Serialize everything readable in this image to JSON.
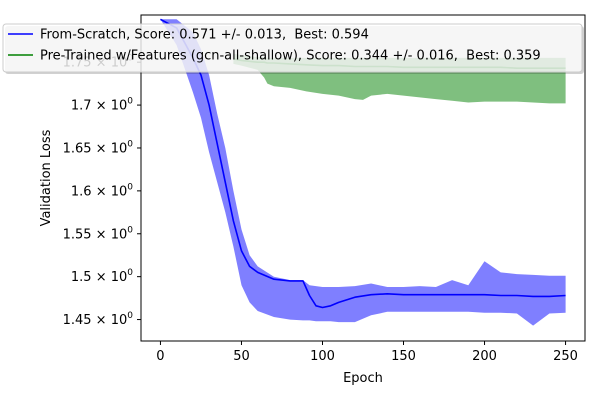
{
  "chart_data": {
    "type": "line",
    "title": "",
    "xlabel": "Epoch",
    "ylabel": "Validation Loss",
    "xlim": [
      -12,
      262
    ],
    "ylim": [
      1.425,
      1.805
    ],
    "x_ticks": [
      0,
      50,
      100,
      150,
      200,
      250
    ],
    "x_tick_labels": [
      "0",
      "50",
      "100",
      "150",
      "200",
      "250"
    ],
    "y_ticks": [
      1.45,
      1.5,
      1.55,
      1.6,
      1.65,
      1.7,
      1.75
    ],
    "y_tick_labels": [
      {
        "base": "1.45",
        "times": "× 10",
        "exp": "0"
      },
      {
        "base": "1.5",
        "times": "× 10",
        "exp": "0"
      },
      {
        "base": "1.55",
        "times": "× 10",
        "exp": "0"
      },
      {
        "base": "1.6",
        "times": "× 10",
        "exp": "0"
      },
      {
        "base": "1.65",
        "times": "× 10",
        "exp": "0"
      },
      {
        "base": "1.7",
        "times": "× 10",
        "exp": "0"
      },
      {
        "base": "1.75",
        "times": "× 10",
        "exp": "0"
      }
    ],
    "legend_position": "top",
    "series": [
      {
        "name": "From-Scratch, Score: 0.571 +/- 0.013,  Best: 0.594",
        "color": "#0000ff",
        "band_color": "#0000ff",
        "x": [
          0,
          10,
          20,
          25,
          30,
          35,
          40,
          45,
          50,
          55,
          60,
          70,
          80,
          88,
          92,
          96,
          100,
          105,
          110,
          120,
          130,
          140,
          150,
          160,
          170,
          180,
          190,
          200,
          210,
          220,
          230,
          240,
          250
        ],
        "mean": [
          1.8,
          1.79,
          1.755,
          1.735,
          1.7,
          1.655,
          1.61,
          1.565,
          1.53,
          1.512,
          1.505,
          1.497,
          1.495,
          1.495,
          1.478,
          1.466,
          1.464,
          1.466,
          1.47,
          1.476,
          1.479,
          1.48,
          1.479,
          1.479,
          1.479,
          1.479,
          1.479,
          1.479,
          1.478,
          1.478,
          1.477,
          1.477,
          1.478
        ],
        "upper": [
          1.8,
          1.8,
          1.785,
          1.765,
          1.735,
          1.69,
          1.65,
          1.6,
          1.555,
          1.525,
          1.512,
          1.5,
          1.496,
          1.496,
          1.49,
          1.489,
          1.488,
          1.488,
          1.488,
          1.489,
          1.492,
          1.488,
          1.488,
          1.489,
          1.488,
          1.496,
          1.49,
          1.518,
          1.505,
          1.503,
          1.502,
          1.501,
          1.501
        ],
        "lower": [
          1.8,
          1.77,
          1.715,
          1.685,
          1.645,
          1.61,
          1.575,
          1.535,
          1.49,
          1.47,
          1.46,
          1.453,
          1.45,
          1.449,
          1.449,
          1.448,
          1.448,
          1.448,
          1.447,
          1.447,
          1.455,
          1.459,
          1.459,
          1.459,
          1.459,
          1.459,
          1.459,
          1.458,
          1.458,
          1.457,
          1.443,
          1.457,
          1.458
        ]
      },
      {
        "name": "Pre-Trained w/Features (gcn-all-shallow), Score: 0.344 +/- 0.016,  Best: 0.359",
        "color": "#008000",
        "band_color": "#008000",
        "x": [
          45,
          50,
          60,
          64,
          66,
          70,
          80,
          90,
          100,
          110,
          120,
          125,
          130,
          140,
          150,
          160,
          170,
          180,
          190,
          200,
          210,
          220,
          230,
          240,
          250
        ],
        "mean": [
          1.754,
          1.752,
          1.75,
          1.75,
          1.749,
          1.749,
          1.748,
          1.747,
          1.746,
          1.746,
          1.745,
          1.745,
          1.745,
          1.745,
          1.744,
          1.744,
          1.744,
          1.744,
          1.744,
          1.744,
          1.744,
          1.743,
          1.743,
          1.743,
          1.743
        ],
        "upper": [
          1.76,
          1.758,
          1.756,
          1.756,
          1.755,
          1.755,
          1.755,
          1.755,
          1.755,
          1.755,
          1.755,
          1.755,
          1.755,
          1.755,
          1.755,
          1.755,
          1.755,
          1.755,
          1.755,
          1.755,
          1.755,
          1.755,
          1.755,
          1.755,
          1.755
        ],
        "lower": [
          1.748,
          1.746,
          1.741,
          1.732,
          1.725,
          1.722,
          1.72,
          1.716,
          1.713,
          1.711,
          1.707,
          1.706,
          1.711,
          1.713,
          1.711,
          1.709,
          1.707,
          1.705,
          1.703,
          1.704,
          1.704,
          1.704,
          1.703,
          1.702,
          1.702
        ]
      }
    ]
  }
}
